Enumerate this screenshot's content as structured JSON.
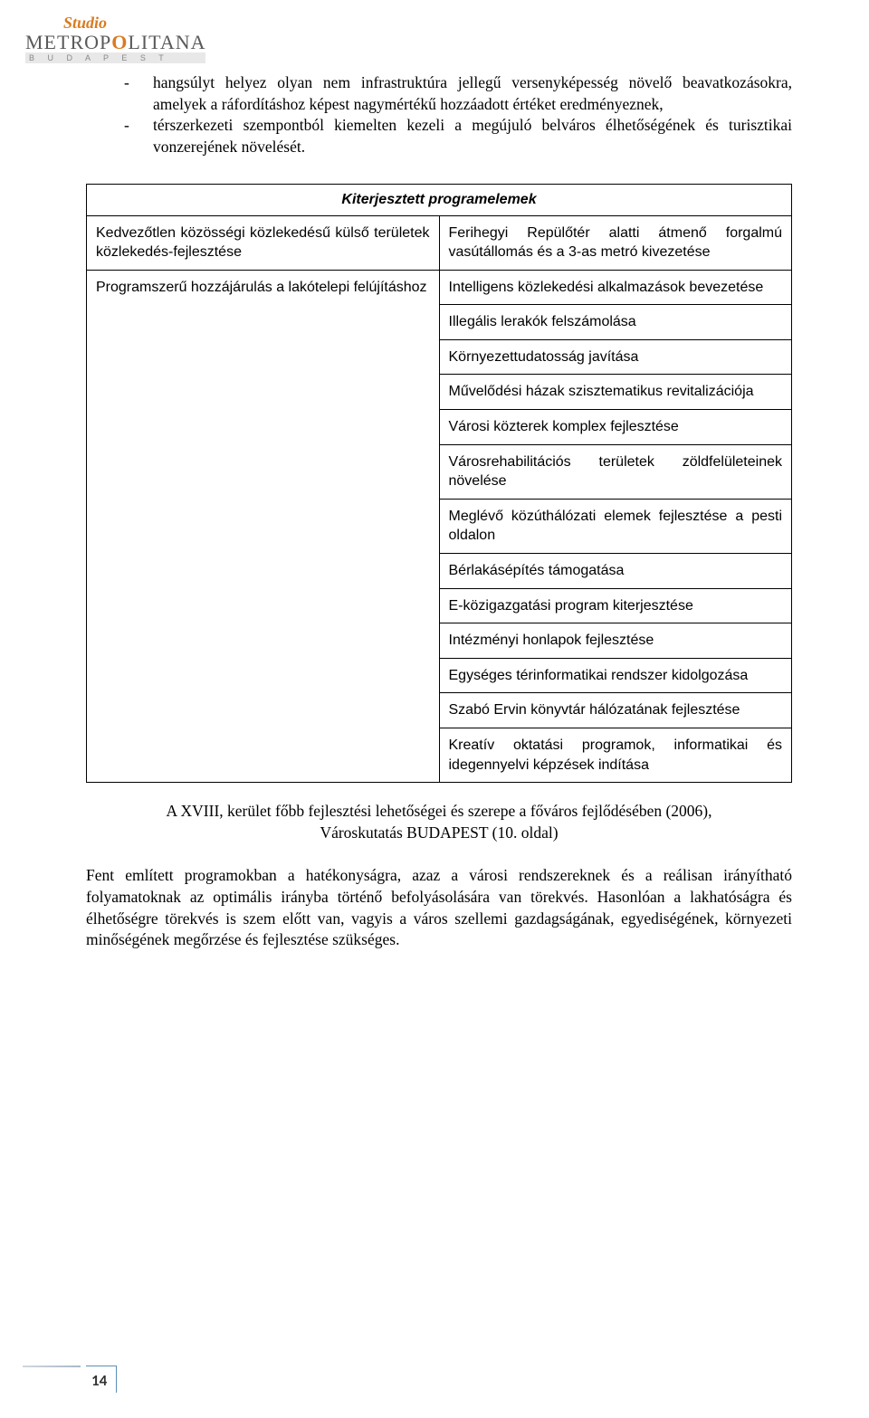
{
  "logo": {
    "studio": "Studio",
    "metropolitana_part1": "METROP",
    "metropolitana_o": "O",
    "metropolitana_part2": "LITANA",
    "budapest": "B U D A P E S T"
  },
  "intro": {
    "bullet1_prefix": "- ",
    "bullet1": "hangsúlyt helyez olyan nem infrastruktúra jellegű versenyképesség növelő beavatkozásokra, amelyek a ráfordításhoz képest nagymértékű hozzáadott értéket eredményeznek,",
    "bullet2_prefix": "- ",
    "bullet2": "térszerkezeti szempontból kiemelten kezeli a megújuló belváros élhetőségének és turisztikai vonzerejének növelését."
  },
  "table": {
    "header": "Kiterjesztett programelemek",
    "rows": [
      {
        "left": "Kedvezőtlen közösségi közlekedésű külső területek közlekedés-fejlesztése",
        "right": "Ferihegyi Repülőtér alatti átmenő forgalmú vasútállomás és a 3-as metró kivezetése",
        "left_justify": true,
        "right_justify": true
      },
      {
        "left": "Programszerű hozzájárulás a lakótelepi felújításhoz",
        "right": "Intelligens közlekedési alkalmazások bevezetése",
        "left_justify": true,
        "right_justify": false
      },
      {
        "left": "",
        "right": "Illegális lerakók felszámolása"
      },
      {
        "left": "",
        "right": "Környezettudatosság javítása"
      },
      {
        "left": "",
        "right": "Művelődési házak szisztematikus revitalizációja"
      },
      {
        "left": "",
        "right": "Városi közterek komplex fejlesztése"
      },
      {
        "left": "",
        "right": "Városrehabilitációs területek zöldfelületeinek növelése",
        "right_justify": true
      },
      {
        "left": "",
        "right": "Meglévő közúthálózati elemek fejlesztése a pesti oldalon",
        "right_justify": true
      },
      {
        "left": "",
        "right": "Bérlakásépítés támogatása"
      },
      {
        "left": "",
        "right": "E-közigazgatási program kiterjesztése"
      },
      {
        "left": "",
        "right": "Intézményi honlapok fejlesztése"
      },
      {
        "left": "",
        "right": "Egységes térinformatikai rendszer kidolgozása"
      },
      {
        "left": "",
        "right": "Szabó Ervin könyvtár hálózatának fejlesztése"
      },
      {
        "left": "",
        "right": "Kreatív oktatási programok, informatikai és idegennyelvi képzések indítása",
        "right_justify": true
      }
    ],
    "left_rowspan_first": 1,
    "left_rowspan_rest": 13
  },
  "caption": {
    "line1": "A XVIII, kerület főbb fejlesztési lehetőségei és szerepe a főváros fejlődésében (2006),",
    "line2": "Városkutatás BUDAPEST (10. oldal)"
  },
  "closing": "Fent említett programokban a hatékonyságra, azaz a városi rendszereknek és a reálisan irányítható folyamatoknak az optimális irányba történő befolyásolására van törekvés. Hasonlóan a lakhatóságra és élhetőségre törekvés is szem előtt van, vagyis a város szellemi gazdagságának, egyediségének, környezeti minőségének megőrzése és fejlesztése szükséges.",
  "page_number": "14"
}
